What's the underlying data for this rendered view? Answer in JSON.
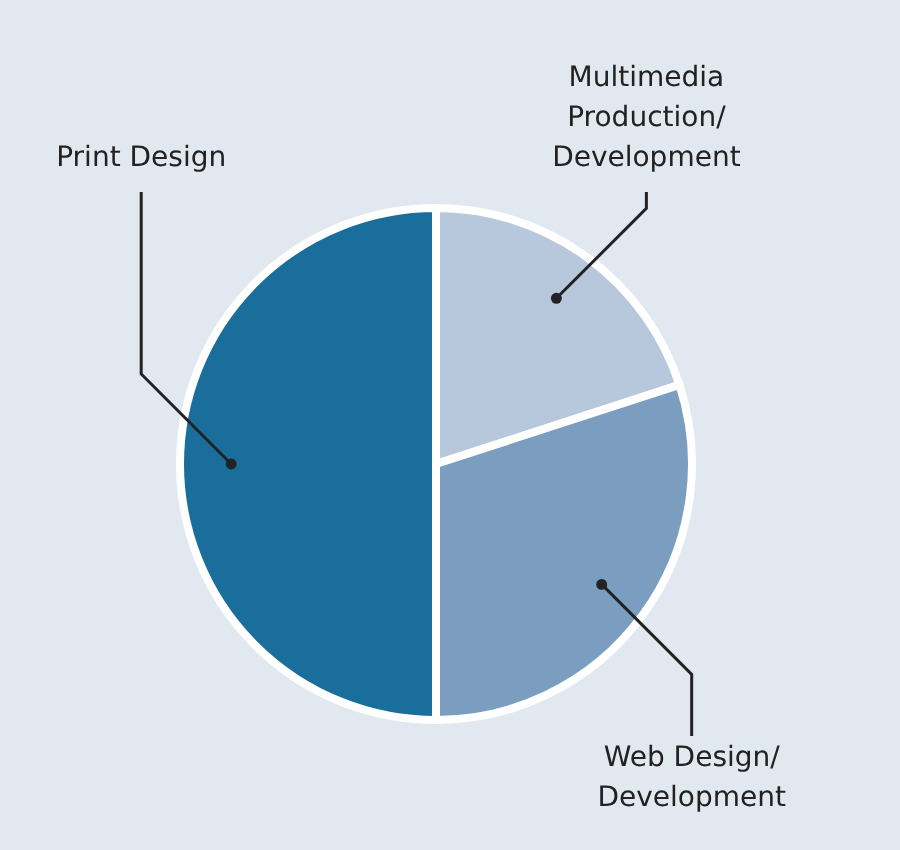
{
  "chart_data": {
    "type": "pie",
    "categories": [
      "Multimedia\nProduction/\nDevelopment",
      "Web Design/\nDevelopment",
      "Print Design"
    ],
    "values": [
      20,
      30,
      50
    ],
    "colors": [
      "#b7c7dc",
      "#7b9ec0",
      "#1a6e9c"
    ]
  }
}
